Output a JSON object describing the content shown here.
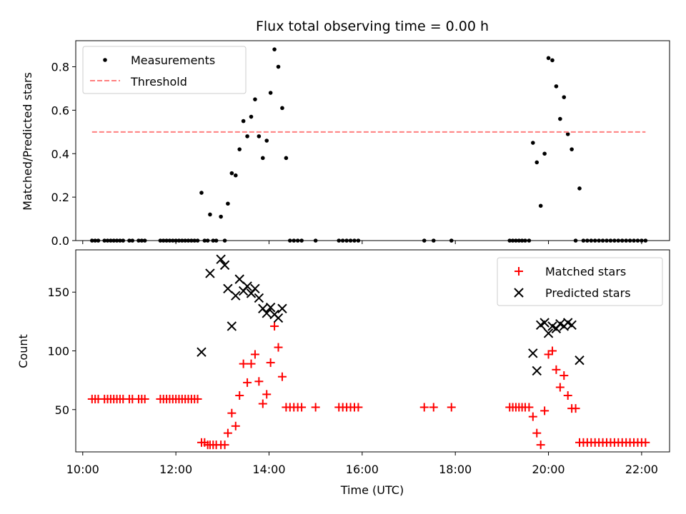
{
  "chart_data": [
    {
      "type": "scatter",
      "title": "Flux total observing time = 0.00 h",
      "xlabel": "",
      "ylabel": "Matched/Predicted stars",
      "xlim": [
        "09:51",
        "22:36"
      ],
      "ylim": [
        0,
        0.92
      ],
      "yticks": [
        0.0,
        0.2,
        0.4,
        0.6,
        0.8
      ],
      "yticklabels": [
        "0.0",
        "0.2",
        "0.4",
        "0.6",
        "0.8"
      ],
      "legend": {
        "placement": "top-left",
        "entries": [
          "Measurements",
          "Threshold"
        ]
      },
      "series": [
        {
          "name": "Measurements",
          "marker": "dot",
          "color": "#000000",
          "points": [
            [
              "10:12",
              0
            ],
            [
              "10:16",
              0
            ],
            [
              "10:20",
              0
            ],
            [
              "10:28",
              0
            ],
            [
              "10:32",
              0
            ],
            [
              "10:36",
              0
            ],
            [
              "10:40",
              0
            ],
            [
              "10:44",
              0
            ],
            [
              "10:48",
              0
            ],
            [
              "10:52",
              0
            ],
            [
              "11:00",
              0
            ],
            [
              "11:04",
              0
            ],
            [
              "11:12",
              0
            ],
            [
              "11:16",
              0
            ],
            [
              "11:20",
              0
            ],
            [
              "11:40",
              0
            ],
            [
              "11:44",
              0
            ],
            [
              "11:48",
              0
            ],
            [
              "11:52",
              0
            ],
            [
              "11:56",
              0
            ],
            [
              "12:00",
              0
            ],
            [
              "12:04",
              0
            ],
            [
              "12:08",
              0
            ],
            [
              "12:12",
              0
            ],
            [
              "12:16",
              0
            ],
            [
              "12:20",
              0
            ],
            [
              "12:24",
              0
            ],
            [
              "12:28",
              0
            ],
            [
              "12:33",
              0.22
            ],
            [
              "12:37",
              0
            ],
            [
              "12:41",
              0
            ],
            [
              "12:44",
              0.12
            ],
            [
              "12:48",
              0
            ],
            [
              "12:52",
              0
            ],
            [
              "12:58",
              0.11
            ],
            [
              "13:03",
              0
            ],
            [
              "13:07",
              0.17
            ],
            [
              "13:12",
              0.31
            ],
            [
              "13:17",
              0.3
            ],
            [
              "13:22",
              0.42
            ],
            [
              "13:27",
              0.55
            ],
            [
              "13:32",
              0.48
            ],
            [
              "13:37",
              0.57
            ],
            [
              "13:42",
              0.65
            ],
            [
              "13:47",
              0.48
            ],
            [
              "13:52",
              0.38
            ],
            [
              "13:57",
              0.46
            ],
            [
              "14:02",
              0.68
            ],
            [
              "14:07",
              0.88
            ],
            [
              "14:12",
              0.8
            ],
            [
              "14:17",
              0.61
            ],
            [
              "14:22",
              0.38
            ],
            [
              "14:27",
              0
            ],
            [
              "14:32",
              0
            ],
            [
              "14:37",
              0
            ],
            [
              "14:42",
              0
            ],
            [
              "15:00",
              0
            ],
            [
              "15:30",
              0
            ],
            [
              "15:35",
              0
            ],
            [
              "15:40",
              0
            ],
            [
              "15:45",
              0
            ],
            [
              "15:50",
              0
            ],
            [
              "15:55",
              0
            ],
            [
              "17:20",
              0
            ],
            [
              "17:32",
              0
            ],
            [
              "17:55",
              0
            ],
            [
              "19:10",
              0
            ],
            [
              "19:14",
              0
            ],
            [
              "19:18",
              0
            ],
            [
              "19:22",
              0
            ],
            [
              "19:26",
              0
            ],
            [
              "19:30",
              0
            ],
            [
              "19:35",
              0
            ],
            [
              "19:40",
              0.45
            ],
            [
              "19:45",
              0.36
            ],
            [
              "19:50",
              0.16
            ],
            [
              "19:55",
              0.4
            ],
            [
              "20:00",
              0.84
            ],
            [
              "20:05",
              0.83
            ],
            [
              "20:10",
              0.71
            ],
            [
              "20:15",
              0.56
            ],
            [
              "20:20",
              0.66
            ],
            [
              "20:25",
              0.49
            ],
            [
              "20:30",
              0.42
            ],
            [
              "20:35",
              0
            ],
            [
              "20:40",
              0.24
            ],
            [
              "20:45",
              0
            ],
            [
              "20:50",
              0
            ],
            [
              "20:55",
              0
            ],
            [
              "21:00",
              0
            ],
            [
              "21:05",
              0
            ],
            [
              "21:10",
              0
            ],
            [
              "21:15",
              0
            ],
            [
              "21:20",
              0
            ],
            [
              "21:25",
              0
            ],
            [
              "21:30",
              0
            ],
            [
              "21:35",
              0
            ],
            [
              "21:40",
              0
            ],
            [
              "21:45",
              0
            ],
            [
              "21:50",
              0
            ],
            [
              "21:55",
              0
            ],
            [
              "22:00",
              0
            ],
            [
              "22:05",
              0
            ]
          ]
        },
        {
          "name": "Threshold",
          "marker": "dashed-line",
          "color": "#ff7f7f",
          "points": [
            [
              "10:12",
              0.5
            ],
            [
              "22:05",
              0.5
            ]
          ]
        }
      ]
    },
    {
      "type": "scatter",
      "title": "",
      "xlabel": "Time (UTC)",
      "ylabel": "Count",
      "xlim": [
        "09:51",
        "22:36"
      ],
      "ylim": [
        14,
        186
      ],
      "yticks": [
        50,
        100,
        150
      ],
      "yticklabels": [
        "50",
        "100",
        "150"
      ],
      "xticks": [
        "10:00",
        "12:00",
        "14:00",
        "16:00",
        "18:00",
        "20:00",
        "22:00"
      ],
      "xticklabels": [
        "10:00",
        "12:00",
        "14:00",
        "16:00",
        "18:00",
        "20:00",
        "22:00"
      ],
      "legend": {
        "placement": "top-right",
        "entries": [
          "Matched stars",
          "Predicted stars"
        ]
      },
      "series": [
        {
          "name": "Matched stars",
          "marker": "plus",
          "color": "#ff0000",
          "points": [
            [
              "10:12",
              59
            ],
            [
              "10:16",
              59
            ],
            [
              "10:20",
              59
            ],
            [
              "10:28",
              59
            ],
            [
              "10:32",
              59
            ],
            [
              "10:36",
              59
            ],
            [
              "10:40",
              59
            ],
            [
              "10:44",
              59
            ],
            [
              "10:48",
              59
            ],
            [
              "10:52",
              59
            ],
            [
              "11:00",
              59
            ],
            [
              "11:04",
              59
            ],
            [
              "11:12",
              59
            ],
            [
              "11:16",
              59
            ],
            [
              "11:20",
              59
            ],
            [
              "11:40",
              59
            ],
            [
              "11:44",
              59
            ],
            [
              "11:48",
              59
            ],
            [
              "11:52",
              59
            ],
            [
              "11:56",
              59
            ],
            [
              "12:00",
              59
            ],
            [
              "12:04",
              59
            ],
            [
              "12:08",
              59
            ],
            [
              "12:12",
              59
            ],
            [
              "12:16",
              59
            ],
            [
              "12:20",
              59
            ],
            [
              "12:24",
              59
            ],
            [
              "12:28",
              59
            ],
            [
              "12:33",
              22
            ],
            [
              "12:37",
              22
            ],
            [
              "12:41",
              20
            ],
            [
              "12:44",
              20
            ],
            [
              "12:48",
              20
            ],
            [
              "12:52",
              20
            ],
            [
              "12:58",
              20
            ],
            [
              "13:03",
              20
            ],
            [
              "13:07",
              30
            ],
            [
              "13:12",
              47
            ],
            [
              "13:17",
              36
            ],
            [
              "13:22",
              62
            ],
            [
              "13:27",
              89
            ],
            [
              "13:32",
              73
            ],
            [
              "13:37",
              89
            ],
            [
              "13:42",
              97
            ],
            [
              "13:47",
              74
            ],
            [
              "13:52",
              55
            ],
            [
              "13:57",
              63
            ],
            [
              "14:02",
              90
            ],
            [
              "14:07",
              121
            ],
            [
              "14:12",
              103
            ],
            [
              "14:17",
              78
            ],
            [
              "14:22",
              52
            ],
            [
              "14:27",
              52
            ],
            [
              "14:32",
              52
            ],
            [
              "14:37",
              52
            ],
            [
              "14:42",
              52
            ],
            [
              "15:00",
              52
            ],
            [
              "15:30",
              52
            ],
            [
              "15:35",
              52
            ],
            [
              "15:40",
              52
            ],
            [
              "15:45",
              52
            ],
            [
              "15:50",
              52
            ],
            [
              "15:55",
              52
            ],
            [
              "17:20",
              52
            ],
            [
              "17:32",
              52
            ],
            [
              "17:55",
              52
            ],
            [
              "19:10",
              52
            ],
            [
              "19:14",
              52
            ],
            [
              "19:18",
              52
            ],
            [
              "19:22",
              52
            ],
            [
              "19:26",
              52
            ],
            [
              "19:30",
              52
            ],
            [
              "19:35",
              52
            ],
            [
              "19:40",
              44
            ],
            [
              "19:45",
              30
            ],
            [
              "19:50",
              20
            ],
            [
              "19:55",
              49
            ],
            [
              "20:00",
              97
            ],
            [
              "20:05",
              100
            ],
            [
              "20:10",
              84
            ],
            [
              "20:15",
              69
            ],
            [
              "20:20",
              79
            ],
            [
              "20:25",
              62
            ],
            [
              "20:30",
              51
            ],
            [
              "20:35",
              51
            ],
            [
              "20:40",
              22
            ],
            [
              "20:45",
              22
            ],
            [
              "20:50",
              22
            ],
            [
              "20:55",
              22
            ],
            [
              "21:00",
              22
            ],
            [
              "21:05",
              22
            ],
            [
              "21:10",
              22
            ],
            [
              "21:15",
              22
            ],
            [
              "21:20",
              22
            ],
            [
              "21:25",
              22
            ],
            [
              "21:30",
              22
            ],
            [
              "21:35",
              22
            ],
            [
              "21:40",
              22
            ],
            [
              "21:45",
              22
            ],
            [
              "21:50",
              22
            ],
            [
              "21:55",
              22
            ],
            [
              "22:00",
              22
            ],
            [
              "22:05",
              22
            ]
          ]
        },
        {
          "name": "Predicted stars",
          "marker": "x",
          "color": "#000000",
          "points": [
            [
              "12:33",
              99
            ],
            [
              "12:44",
              166
            ],
            [
              "12:58",
              178
            ],
            [
              "13:03",
              173
            ],
            [
              "13:07",
              153
            ],
            [
              "13:12",
              121
            ],
            [
              "13:17",
              147
            ],
            [
              "13:22",
              161
            ],
            [
              "13:27",
              151
            ],
            [
              "13:32",
              155
            ],
            [
              "13:37",
              149
            ],
            [
              "13:42",
              153
            ],
            [
              "13:47",
              145
            ],
            [
              "13:52",
              136
            ],
            [
              "13:57",
              132
            ],
            [
              "14:02",
              137
            ],
            [
              "14:07",
              131
            ],
            [
              "14:12",
              128
            ],
            [
              "14:17",
              136
            ],
            [
              "19:40",
              98
            ],
            [
              "19:45",
              83
            ],
            [
              "19:50",
              122
            ],
            [
              "19:55",
              124
            ],
            [
              "20:00",
              115
            ],
            [
              "20:05",
              121
            ],
            [
              "20:10",
              119
            ],
            [
              "20:15",
              123
            ],
            [
              "20:20",
              121
            ],
            [
              "20:25",
              124
            ],
            [
              "20:30",
              122
            ],
            [
              "20:40",
              92
            ]
          ]
        }
      ]
    }
  ]
}
